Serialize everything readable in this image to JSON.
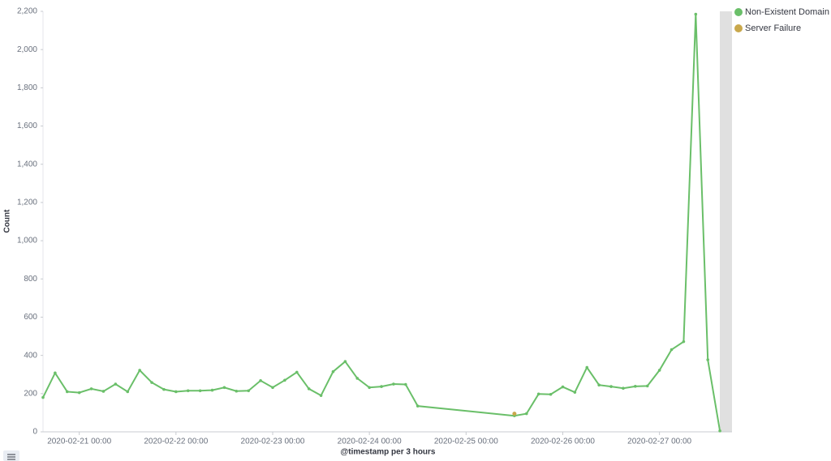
{
  "chart_data": {
    "type": "line",
    "x_label": "@timestamp per 3 hours",
    "y_label": "Count",
    "xlim": [
      "2020-02-20 15:00",
      "2020-02-27 18:00"
    ],
    "xticks": [
      "2020-02-21 00:00",
      "2020-02-22 00:00",
      "2020-02-23 00:00",
      "2020-02-24 00:00",
      "2020-02-25 00:00",
      "2020-02-26 00:00",
      "2020-02-27 00:00"
    ],
    "ylim": [
      0,
      2200
    ],
    "yticks": [
      0,
      200,
      400,
      600,
      800,
      {
        "value": 1000,
        "label": "1,000"
      },
      {
        "value": 1200,
        "label": "1,200"
      },
      {
        "value": 1400,
        "label": "1,400"
      },
      {
        "value": 1600,
        "label": "1,600"
      },
      {
        "value": 1800,
        "label": "1,800"
      },
      {
        "value": 2000,
        "label": "2,000"
      },
      {
        "value": 2200,
        "label": "2,200"
      }
    ],
    "grid": false,
    "legend": "right",
    "series": [
      {
        "name": "Non-Existent Domain",
        "color": "#6abf69",
        "x": [
          "2020-02-20 15:00",
          "2020-02-20 18:00",
          "2020-02-20 21:00",
          "2020-02-21 00:00",
          "2020-02-21 03:00",
          "2020-02-21 06:00",
          "2020-02-21 09:00",
          "2020-02-21 12:00",
          "2020-02-21 15:00",
          "2020-02-21 18:00",
          "2020-02-21 21:00",
          "2020-02-22 00:00",
          "2020-02-22 03:00",
          "2020-02-22 06:00",
          "2020-02-22 09:00",
          "2020-02-22 12:00",
          "2020-02-22 15:00",
          "2020-02-22 18:00",
          "2020-02-22 21:00",
          "2020-02-23 00:00",
          "2020-02-23 03:00",
          "2020-02-23 06:00",
          "2020-02-23 09:00",
          "2020-02-23 12:00",
          "2020-02-23 15:00",
          "2020-02-23 18:00",
          "2020-02-23 21:00",
          "2020-02-24 00:00",
          "2020-02-24 03:00",
          "2020-02-24 06:00",
          "2020-02-24 09:00",
          "2020-02-24 12:00",
          "2020-02-25 12:00",
          "2020-02-25 15:00",
          "2020-02-25 18:00",
          "2020-02-25 21:00",
          "2020-02-26 00:00",
          "2020-02-26 03:00",
          "2020-02-26 06:00",
          "2020-02-26 09:00",
          "2020-02-26 12:00",
          "2020-02-26 15:00",
          "2020-02-26 18:00",
          "2020-02-26 21:00",
          "2020-02-27 00:00",
          "2020-02-27 03:00",
          "2020-02-27 06:00",
          "2020-02-27 09:00",
          "2020-02-27 12:00",
          "2020-02-27 15:00"
        ],
        "values": [
          180,
          308,
          210,
          205,
          225,
          212,
          250,
          210,
          322,
          258,
          222,
          210,
          215,
          215,
          218,
          232,
          213,
          215,
          268,
          232,
          270,
          312,
          225,
          190,
          315,
          368,
          280,
          232,
          237,
          250,
          248,
          135,
          84,
          95,
          198,
          196,
          235,
          207,
          337,
          245,
          237,
          228,
          238,
          240,
          322,
          430,
          472,
          2185,
          377,
          5
        ]
      },
      {
        "name": "Server Failure",
        "color": "#c9a84c",
        "x": [
          "2020-02-25 12:00"
        ],
        "values": [
          95
        ]
      }
    ]
  }
}
